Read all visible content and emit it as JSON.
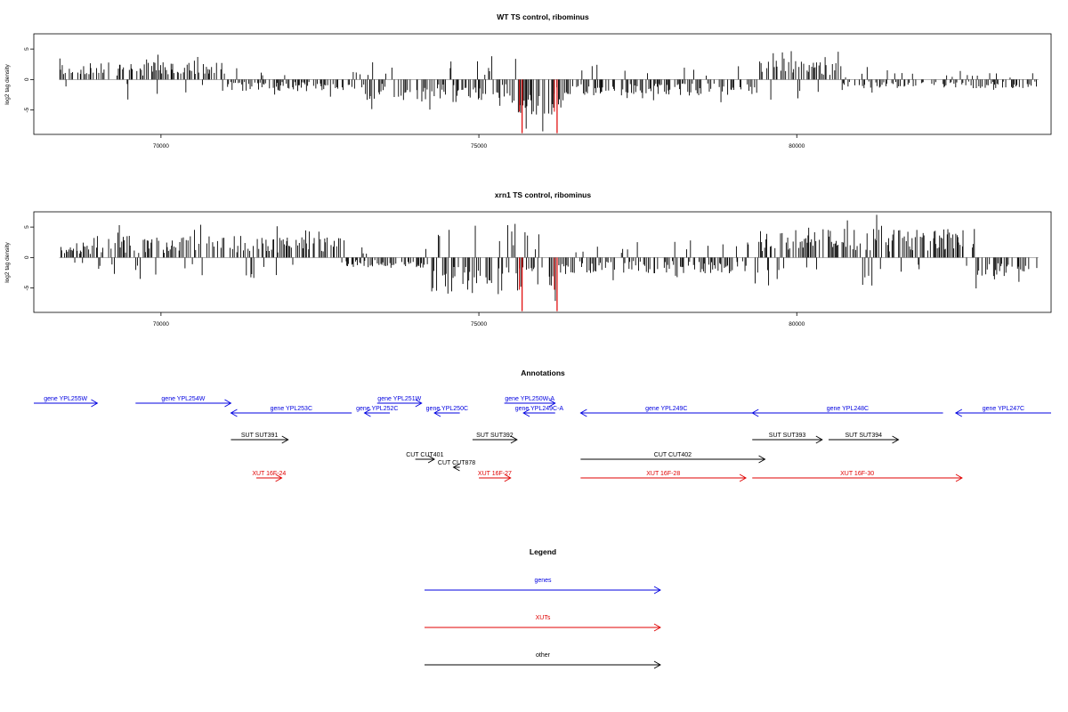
{
  "chart_data": [
    {
      "type": "bar",
      "title": "WT TS control, ribominus",
      "ylabel": "log2 tag density",
      "xlabel": "",
      "xlim": [
        68000,
        84000
      ],
      "ylim": [
        -9,
        7.5
      ],
      "x_ticks": [
        70000,
        75000,
        80000
      ],
      "y_ticks": [
        -5,
        0,
        5
      ],
      "data_range": [
        68400,
        83800
      ],
      "highlight": {
        "color": "#e00000",
        "x": [
          75680,
          76230
        ],
        "values": [
          -8.8,
          -8.8
        ]
      },
      "profile": [
        {
          "from": 68400,
          "to": 69000,
          "sign": 1,
          "amp": 2
        },
        {
          "from": 69000,
          "to": 71000,
          "sign": 1,
          "amp": 2.4
        },
        {
          "from": 71000,
          "to": 73200,
          "sign": -1,
          "amp": 1.6
        },
        {
          "from": 73200,
          "to": 75500,
          "sign": -1,
          "amp": 2.8
        },
        {
          "from": 75500,
          "to": 76300,
          "sign": -1,
          "amp": 5
        },
        {
          "from": 76300,
          "to": 79400,
          "sign": -1,
          "amp": 2.2
        },
        {
          "from": 79400,
          "to": 80700,
          "sign": 1,
          "amp": 2.6
        },
        {
          "from": 80700,
          "to": 83800,
          "sign": -1,
          "amp": 1.2
        }
      ]
    },
    {
      "type": "bar",
      "title": "xrn1 TS control, ribominus",
      "ylabel": "log2 tag density",
      "xlabel": "",
      "xlim": [
        68000,
        84000
      ],
      "ylim": [
        -9,
        7.5
      ],
      "x_ticks": [
        70000,
        75000,
        80000
      ],
      "y_ticks": [
        -5,
        0,
        5
      ],
      "data_range": [
        68400,
        83800
      ],
      "highlight": {
        "color": "#e00000",
        "x": [
          75680,
          76230
        ],
        "values": [
          -8.8,
          -8.8
        ]
      },
      "profile": [
        {
          "from": 68400,
          "to": 69200,
          "sign": 1,
          "amp": 2.2
        },
        {
          "from": 69200,
          "to": 72900,
          "sign": 1,
          "amp": 3
        },
        {
          "from": 72900,
          "to": 74200,
          "sign": -1,
          "amp": 1.4
        },
        {
          "from": 74200,
          "to": 75500,
          "sign": -1,
          "amp": 5
        },
        {
          "from": 75500,
          "to": 76300,
          "sign": -1,
          "amp": 4
        },
        {
          "from": 76300,
          "to": 79300,
          "sign": -1,
          "amp": 2.2
        },
        {
          "from": 79300,
          "to": 82800,
          "sign": 1,
          "amp": 4
        },
        {
          "from": 82800,
          "to": 83800,
          "sign": -1,
          "amp": 3
        }
      ]
    }
  ],
  "annotations": {
    "title": "Annotations",
    "colors": {
      "gene": "#0000e0",
      "xut": "#e00000",
      "other": "#000000"
    },
    "items": [
      {
        "label": "gene YPL255W",
        "kind": "gene",
        "start": 68000,
        "end": 69000,
        "row": 0
      },
      {
        "label": "gene YPL254W",
        "kind": "gene",
        "start": 69600,
        "end": 71100,
        "row": 0
      },
      {
        "label": "gene YPL253C",
        "kind": "gene",
        "start": 73000,
        "end": 71100,
        "row": 1
      },
      {
        "label": "gene YPL251W",
        "kind": "gene",
        "start": 73400,
        "end": 74100,
        "row": 0
      },
      {
        "label": "gene YPL252C",
        "kind": "gene",
        "start": 73600,
        "end": 73200,
        "row": 1
      },
      {
        "label": "gene YPL250C",
        "kind": "gene",
        "start": 74700,
        "end": 74300,
        "row": 1
      },
      {
        "label": "gene YPL250W-A",
        "kind": "gene",
        "start": 75400,
        "end": 76200,
        "row": 0
      },
      {
        "label": "gene YPL249C-A",
        "kind": "gene",
        "start": 76200,
        "end": 75700,
        "row": 1
      },
      {
        "label": "gene YPL249C",
        "kind": "gene",
        "start": 79300,
        "end": 76600,
        "row": 1
      },
      {
        "label": "gene YPL248C",
        "kind": "gene",
        "start": 82300,
        "end": 79300,
        "row": 1
      },
      {
        "label": "gene YPL247C",
        "kind": "gene",
        "start": 84000,
        "end": 82500,
        "row": 1
      },
      {
        "label": "SUT SUT391",
        "kind": "other",
        "start": 71100,
        "end": 72000,
        "row": 2
      },
      {
        "label": "SUT SUT392",
        "kind": "other",
        "start": 74900,
        "end": 75600,
        "row": 2
      },
      {
        "label": "SUT SUT393",
        "kind": "other",
        "start": 79300,
        "end": 80400,
        "row": 2
      },
      {
        "label": "SUT SUT394",
        "kind": "other",
        "start": 80500,
        "end": 81600,
        "row": 2
      },
      {
        "label": "CUT CUT401",
        "kind": "other",
        "start": 74000,
        "end": 74300,
        "row": 3
      },
      {
        "label": "CUT CUT402",
        "kind": "other",
        "start": 76600,
        "end": 79500,
        "row": 3
      },
      {
        "label": "CUT CUT878",
        "kind": "other",
        "start": 74700,
        "end": 74600,
        "row": 4
      },
      {
        "label": "XUT 16F-24",
        "kind": "xut",
        "start": 71500,
        "end": 71900,
        "row": 5
      },
      {
        "label": "XUT 16F-27",
        "kind": "xut",
        "start": 75000,
        "end": 75500,
        "row": 5
      },
      {
        "label": "XUT 16F-28",
        "kind": "xut",
        "start": 76600,
        "end": 79200,
        "row": 5
      },
      {
        "label": "XUT 16F-30",
        "kind": "xut",
        "start": 79300,
        "end": 82600,
        "row": 5
      }
    ]
  },
  "legend": {
    "title": "Legend",
    "items": [
      {
        "label": "genes",
        "kind": "gene"
      },
      {
        "label": "XUTs",
        "kind": "xut"
      },
      {
        "label": "other",
        "kind": "other"
      }
    ]
  }
}
